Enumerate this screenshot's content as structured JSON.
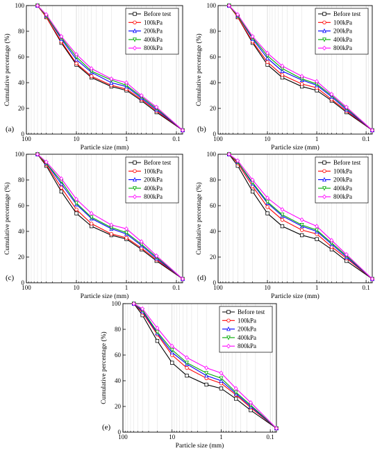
{
  "figure": {
    "xlabel": "Particle size (mm)",
    "ylabel": "Cumulative percentage (%)"
  },
  "chart_data": [
    {
      "type": "line",
      "panel_label": "(a)",
      "x_scale": "log",
      "x_reversed": true,
      "xlim": [
        100,
        0.075
      ],
      "ylim": [
        0,
        100
      ],
      "x_ticks": [
        "100",
        "10",
        "1",
        "0.1"
      ],
      "y_ticks": [
        "0",
        "20",
        "40",
        "60",
        "80",
        "100"
      ],
      "xlabel": "Particle size (mm)",
      "ylabel": "Cumulative percentage (%)",
      "grid": "vertical-minor",
      "legend_position": "top-right",
      "x": [
        60,
        40,
        20,
        10,
        5,
        2,
        1,
        0.5,
        0.25,
        0.075
      ],
      "series": [
        {
          "name": "Before test",
          "color": "#000000",
          "values": [
            100,
            91,
            71,
            54,
            44,
            37,
            34,
            26,
            17,
            3
          ]
        },
        {
          "name": "100kPa",
          "color": "#ff0000",
          "values": [
            100,
            91,
            72,
            55,
            45,
            38,
            35,
            27,
            18,
            3
          ]
        },
        {
          "name": "200kPa",
          "color": "#0000ff",
          "values": [
            100,
            92,
            74,
            58,
            48,
            40,
            37,
            28,
            19,
            3
          ]
        },
        {
          "name": "400kPa",
          "color": "#00aa00",
          "values": [
            100,
            92,
            75,
            60,
            49,
            42,
            38,
            29,
            20,
            3
          ]
        },
        {
          "name": "800kPa",
          "color": "#ff00ff",
          "values": [
            100,
            93,
            76,
            62,
            51,
            43,
            40,
            30,
            21,
            3
          ]
        }
      ]
    },
    {
      "type": "line",
      "panel_label": "(b)",
      "x_scale": "log",
      "x_reversed": true,
      "xlim": [
        100,
        0.075
      ],
      "ylim": [
        0,
        100
      ],
      "x_ticks": [
        "100",
        "10",
        "1",
        "0.1"
      ],
      "y_ticks": [
        "0",
        "20",
        "40",
        "60",
        "80",
        "100"
      ],
      "xlabel": "Particle size (mm)",
      "ylabel": "Cumulative percentage (%)",
      "grid": "vertical-minor",
      "legend_position": "top-right",
      "x": [
        60,
        40,
        20,
        10,
        5,
        2,
        1,
        0.5,
        0.25,
        0.075
      ],
      "series": [
        {
          "name": "Before test",
          "color": "#000000",
          "values": [
            100,
            91,
            71,
            54,
            44,
            37,
            34,
            26,
            17,
            3
          ]
        },
        {
          "name": "100kPa",
          "color": "#ff0000",
          "values": [
            100,
            91,
            72,
            56,
            46,
            39,
            36,
            27,
            18,
            3
          ]
        },
        {
          "name": "200kPa",
          "color": "#0000ff",
          "values": [
            100,
            92,
            74,
            59,
            49,
            42,
            38,
            29,
            19,
            3
          ]
        },
        {
          "name": "400kPa",
          "color": "#00aa00",
          "values": [
            100,
            92,
            75,
            61,
            51,
            43,
            39,
            30,
            20,
            3
          ]
        },
        {
          "name": "800kPa",
          "color": "#ff00ff",
          "values": [
            100,
            93,
            76,
            63,
            53,
            45,
            41,
            31,
            21,
            3
          ]
        }
      ]
    },
    {
      "type": "line",
      "panel_label": "(c)",
      "x_scale": "log",
      "x_reversed": true,
      "xlim": [
        100,
        0.075
      ],
      "ylim": [
        0,
        100
      ],
      "x_ticks": [
        "100",
        "10",
        "1",
        "0.1"
      ],
      "y_ticks": [
        "0",
        "20",
        "40",
        "60",
        "80",
        "100"
      ],
      "xlabel": "Particle size (mm)",
      "ylabel": "Cumulative percentage (%)",
      "grid": "vertical-minor",
      "legend_position": "top-right",
      "x": [
        60,
        40,
        20,
        10,
        5,
        2,
        1,
        0.5,
        0.25,
        0.075
      ],
      "series": [
        {
          "name": "Before test",
          "color": "#000000",
          "values": [
            100,
            91,
            71,
            54,
            44,
            37,
            34,
            26,
            17,
            3
          ]
        },
        {
          "name": "100kPa",
          "color": "#ff0000",
          "values": [
            100,
            92,
            74,
            57,
            46,
            38,
            35,
            27,
            18,
            3
          ]
        },
        {
          "name": "200kPa",
          "color": "#0000ff",
          "values": [
            100,
            93,
            77,
            61,
            50,
            42,
            38,
            29,
            19,
            3
          ]
        },
        {
          "name": "400kPa",
          "color": "#00aa00",
          "values": [
            100,
            93,
            79,
            62,
            51,
            43,
            39,
            30,
            20,
            3
          ]
        },
        {
          "name": "800kPa",
          "color": "#ff00ff",
          "values": [
            100,
            94,
            81,
            65,
            54,
            45,
            42,
            32,
            21,
            3
          ]
        }
      ]
    },
    {
      "type": "line",
      "panel_label": "(d)",
      "x_scale": "log",
      "x_reversed": true,
      "xlim": [
        100,
        0.075
      ],
      "ylim": [
        0,
        100
      ],
      "x_ticks": [
        "100",
        "10",
        "1",
        "0.1"
      ],
      "y_ticks": [
        "0",
        "20",
        "40",
        "60",
        "80",
        "100"
      ],
      "xlabel": "Particle size (mm)",
      "ylabel": "Cumulative percentage (%)",
      "grid": "vertical-minor",
      "legend_position": "top-right",
      "x": [
        60,
        40,
        20,
        10,
        5,
        2,
        1,
        0.5,
        0.25,
        0.075
      ],
      "series": [
        {
          "name": "Before test",
          "color": "#000000",
          "values": [
            100,
            91,
            71,
            54,
            44,
            37,
            34,
            26,
            17,
            3
          ]
        },
        {
          "name": "100kPa",
          "color": "#ff0000",
          "values": [
            100,
            93,
            75,
            59,
            49,
            41,
            38,
            28,
            19,
            3
          ]
        },
        {
          "name": "200kPa",
          "color": "#0000ff",
          "values": [
            100,
            94,
            77,
            62,
            52,
            44,
            40,
            30,
            20,
            3
          ]
        },
        {
          "name": "400kPa",
          "color": "#00aa00",
          "values": [
            100,
            94,
            78,
            63,
            53,
            45,
            41,
            31,
            21,
            3
          ]
        },
        {
          "name": "800kPa",
          "color": "#ff00ff",
          "values": [
            100,
            95,
            80,
            66,
            57,
            49,
            44,
            33,
            22,
            3
          ]
        }
      ]
    },
    {
      "type": "line",
      "panel_label": "(e)",
      "x_scale": "log",
      "x_reversed": true,
      "xlim": [
        100,
        0.075
      ],
      "ylim": [
        0,
        100
      ],
      "x_ticks": [
        "100",
        "10",
        "1",
        "0.1"
      ],
      "y_ticks": [
        "0",
        "20",
        "40",
        "60",
        "80",
        "100"
      ],
      "xlabel": "Particle size (mm)",
      "ylabel": "Cumulative percentage (%)",
      "grid": "vertical-minor",
      "legend_position": "top-right",
      "x": [
        60,
        40,
        20,
        10,
        5,
        2,
        1,
        0.5,
        0.25,
        0.075
      ],
      "series": [
        {
          "name": "Before test",
          "color": "#000000",
          "values": [
            100,
            91,
            71,
            54,
            44,
            37,
            34,
            26,
            17,
            3
          ]
        },
        {
          "name": "100kPa",
          "color": "#ff0000",
          "values": [
            100,
            93,
            76,
            60,
            50,
            42,
            38,
            29,
            19,
            3
          ]
        },
        {
          "name": "200kPa",
          "color": "#0000ff",
          "values": [
            100,
            94,
            77,
            62,
            53,
            44,
            40,
            30,
            20,
            3
          ]
        },
        {
          "name": "400kPa",
          "color": "#00aa00",
          "values": [
            100,
            95,
            78,
            64,
            54,
            46,
            42,
            31,
            21,
            3
          ]
        },
        {
          "name": "800kPa",
          "color": "#ff00ff",
          "values": [
            100,
            96,
            81,
            67,
            58,
            50,
            46,
            34,
            23,
            3
          ]
        }
      ]
    }
  ]
}
